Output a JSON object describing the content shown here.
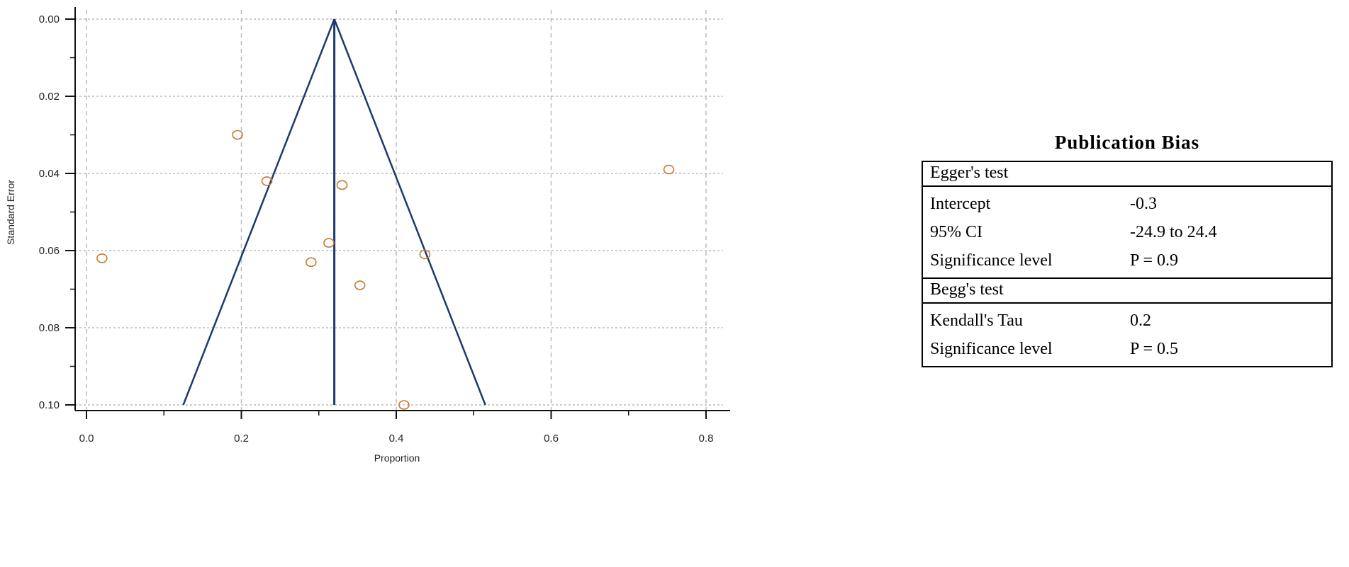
{
  "chart_data": {
    "type": "scatter",
    "subtype": "funnel-plot",
    "xlabel": "Proportion",
    "ylabel": "Standard Error",
    "xlim": [
      0.0,
      0.8
    ],
    "ylim": [
      0.1,
      0.0
    ],
    "y_axis_inverted": true,
    "x_ticks": [
      "0.0",
      "0.2",
      "0.4",
      "0.6",
      "0.8"
    ],
    "y_ticks": [
      "0.00",
      "0.02",
      "0.04",
      "0.06",
      "0.08",
      "0.10"
    ],
    "x_tick_values": [
      0.0,
      0.2,
      0.4,
      0.6,
      0.8
    ],
    "y_tick_values": [
      0.0,
      0.02,
      0.04,
      0.06,
      0.08,
      0.1
    ],
    "grid": true,
    "pooled_estimate": 0.32,
    "funnel_base": [
      0.125,
      0.515
    ],
    "points": [
      {
        "x": 0.195,
        "y": 0.03
      },
      {
        "x": 0.233,
        "y": 0.042
      },
      {
        "x": 0.33,
        "y": 0.043
      },
      {
        "x": 0.313,
        "y": 0.058
      },
      {
        "x": 0.02,
        "y": 0.062
      },
      {
        "x": 0.29,
        "y": 0.063
      },
      {
        "x": 0.437,
        "y": 0.061
      },
      {
        "x": 0.353,
        "y": 0.069
      },
      {
        "x": 0.41,
        "y": 0.1
      },
      {
        "x": 0.752,
        "y": 0.039
      }
    ],
    "colors": {
      "funnel": "#1c3a6e",
      "points": "#c8782e",
      "grid": "#bbbbbb"
    }
  },
  "bias_table": {
    "title": "Publication  Bias",
    "egger": {
      "label": "Egger's  test",
      "rows": [
        {
          "key": "Intercept",
          "value": "-0.3"
        },
        {
          "key": "95% CI",
          "value": "-24.9 to 24.4"
        },
        {
          "key": "Significance  level",
          "value": "P = 0.9"
        }
      ]
    },
    "begg": {
      "label": "Begg's  test",
      "rows": [
        {
          "key": "Kendall's Tau",
          "value": "0.2"
        },
        {
          "key": "Significance  level",
          "value": "P = 0.5"
        }
      ]
    }
  }
}
